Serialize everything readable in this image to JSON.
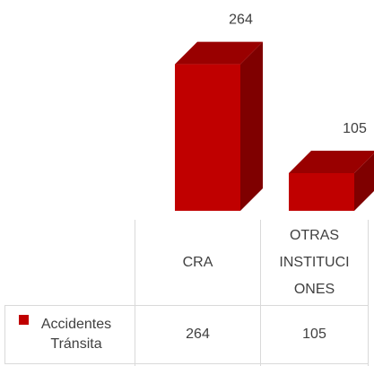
{
  "chart_data": {
    "type": "bar",
    "categories": [
      "CRA",
      "OTRAS INSTITUCIONES"
    ],
    "series": [
      {
        "name": "Accidentes Tránsita",
        "color": "#c00000",
        "values": [
          264,
          105
        ]
      }
    ],
    "ylim": [
      50,
      270
    ]
  }
}
